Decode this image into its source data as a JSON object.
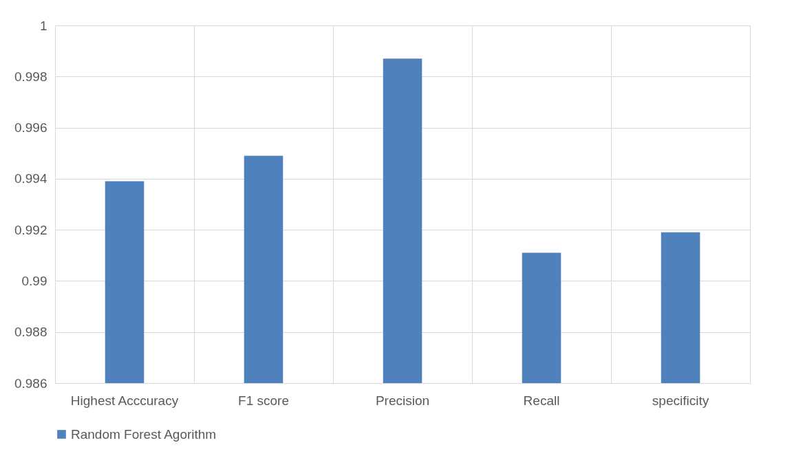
{
  "chart_data": {
    "type": "bar",
    "categories": [
      "Highest Acccuracy",
      "F1 score",
      "Precision",
      "Recall",
      "specificity"
    ],
    "series": [
      {
        "name": "Random Forest Agorithm",
        "color": "#4f81bd",
        "values": [
          0.9939,
          0.9949,
          0.9987,
          0.9911,
          0.9919
        ]
      }
    ],
    "ylim": [
      0.986,
      1
    ],
    "yticks": [
      0.986,
      0.988,
      0.99,
      0.992,
      0.994,
      0.996,
      0.998,
      1
    ],
    "grid": true,
    "legend": "bottom"
  }
}
